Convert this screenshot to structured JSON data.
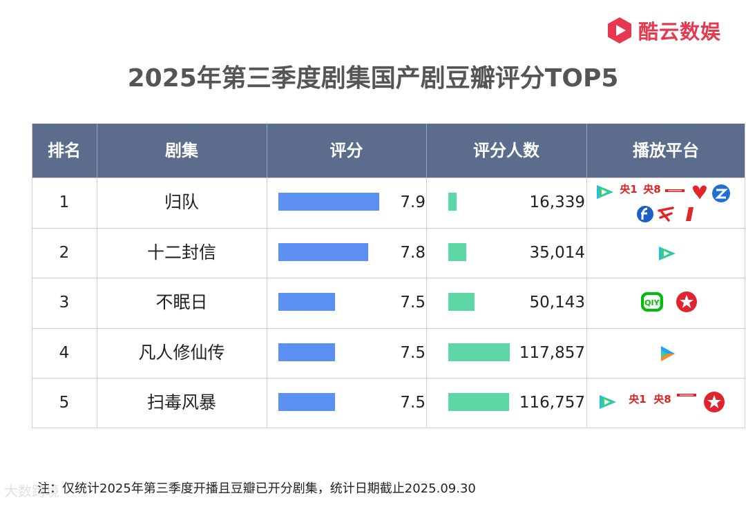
{
  "brand": {
    "name": "酷云数娱",
    "color": "#e8384f"
  },
  "title": "2025年第三季度剧集国产剧豆瓣评分TOP5",
  "headers": {
    "rank": "排名",
    "name": "剧集",
    "score": "评分",
    "votes": "评分人数",
    "platform": "播放平台"
  },
  "chart_data": {
    "type": "table",
    "title": "2025年第三季度剧集国产剧豆瓣评分TOP5",
    "columns": [
      "排名",
      "剧集",
      "评分",
      "评分人数",
      "播放平台"
    ],
    "rows": [
      {
        "rank": "1",
        "name": "归队",
        "score": 7.9,
        "score_text": "7.9",
        "votes": 16339,
        "votes_text": "16,339",
        "platforms": [
          "tencent-video-icon",
          "cctv1-icon",
          "cctv8-icon",
          "cctv-logo-icon",
          "jiangsu-tv-icon",
          "zhejiang-tv-icon",
          "dragon-tv-icon",
          "guangdong-tv-icon",
          "shenzhen-tv-icon"
        ]
      },
      {
        "rank": "2",
        "name": "十二封信",
        "score": 7.8,
        "score_text": "7.8",
        "votes": 35014,
        "votes_text": "35,014",
        "platforms": [
          "tencent-video-icon"
        ]
      },
      {
        "rank": "3",
        "name": "不眠日",
        "score": 7.5,
        "score_text": "7.5",
        "votes": 50143,
        "votes_text": "50,143",
        "platforms": [
          "iqiyi-icon",
          "dragon-tv-star-icon"
        ]
      },
      {
        "rank": "4",
        "name": "凡人修仙传",
        "score": 7.5,
        "score_text": "7.5",
        "votes": 117857,
        "votes_text": "117,857",
        "platforms": [
          "youku-icon"
        ]
      },
      {
        "rank": "5",
        "name": "扫毒风暴",
        "score": 7.5,
        "score_text": "7.5",
        "votes": 116757,
        "votes_text": "116,757",
        "platforms": [
          "tencent-video-icon",
          "cctv1-icon",
          "cctv8-icon",
          "cctv-logo-icon",
          "dragon-tv-star-icon"
        ]
      }
    ],
    "score_bar_color": "#5b8ff2",
    "votes_bar_color": "#5bd6a4",
    "header_color": "#5c6c8c"
  },
  "cctv1_label": "央1",
  "cctv8_label": "央8",
  "footnote": "注：仅统计2025年第三季度开播且豆瓣已开分剧集，统计日期截止2025.09.30",
  "watermark": "大数跨境"
}
